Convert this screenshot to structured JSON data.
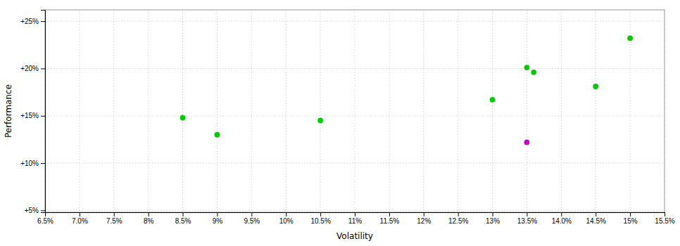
{
  "chart_data": {
    "type": "scatter",
    "xlabel": "Volatility",
    "ylabel": "Performance",
    "xlim": [
      0.065,
      0.155
    ],
    "ylim": [
      0.048,
      0.262
    ],
    "xticks": [
      {
        "value": 0.065,
        "label": "6.5%"
      },
      {
        "value": 0.07,
        "label": "7.0%"
      },
      {
        "value": 0.075,
        "label": "7.5%"
      },
      {
        "value": 0.08,
        "label": "8%"
      },
      {
        "value": 0.085,
        "label": "8.5%"
      },
      {
        "value": 0.09,
        "label": "9%"
      },
      {
        "value": 0.095,
        "label": "9.5%"
      },
      {
        "value": 0.1,
        "label": "10%"
      },
      {
        "value": 0.105,
        "label": "10.5%"
      },
      {
        "value": 0.11,
        "label": "11%"
      },
      {
        "value": 0.115,
        "label": "11.5%"
      },
      {
        "value": 0.12,
        "label": "12%"
      },
      {
        "value": 0.125,
        "label": "12.5%"
      },
      {
        "value": 0.13,
        "label": "13%"
      },
      {
        "value": 0.135,
        "label": "13.5%"
      },
      {
        "value": 0.14,
        "label": "14.0%"
      },
      {
        "value": 0.145,
        "label": "14.5%"
      },
      {
        "value": 0.15,
        "label": "15%"
      },
      {
        "value": 0.155,
        "label": "15.5%"
      }
    ],
    "yticks": [
      {
        "value": 0.05,
        "label": "+5%"
      },
      {
        "value": 0.1,
        "label": "+10%"
      },
      {
        "value": 0.15,
        "label": "+15%"
      },
      {
        "value": 0.2,
        "label": "+20%"
      },
      {
        "value": 0.25,
        "label": "+25%"
      }
    ],
    "grid": true,
    "series": [
      {
        "color": "#00cc00",
        "marker": "circle",
        "x": [
          0.085,
          0.09,
          0.105,
          0.13,
          0.135,
          0.136,
          0.145,
          0.15
        ],
        "values": [
          0.148,
          0.13,
          0.145,
          0.167,
          0.201,
          0.196,
          0.181,
          0.232
        ]
      },
      {
        "color": "#cc00cc",
        "marker": "circle",
        "x": [
          0.135
        ],
        "values": [
          0.122
        ]
      }
    ]
  }
}
